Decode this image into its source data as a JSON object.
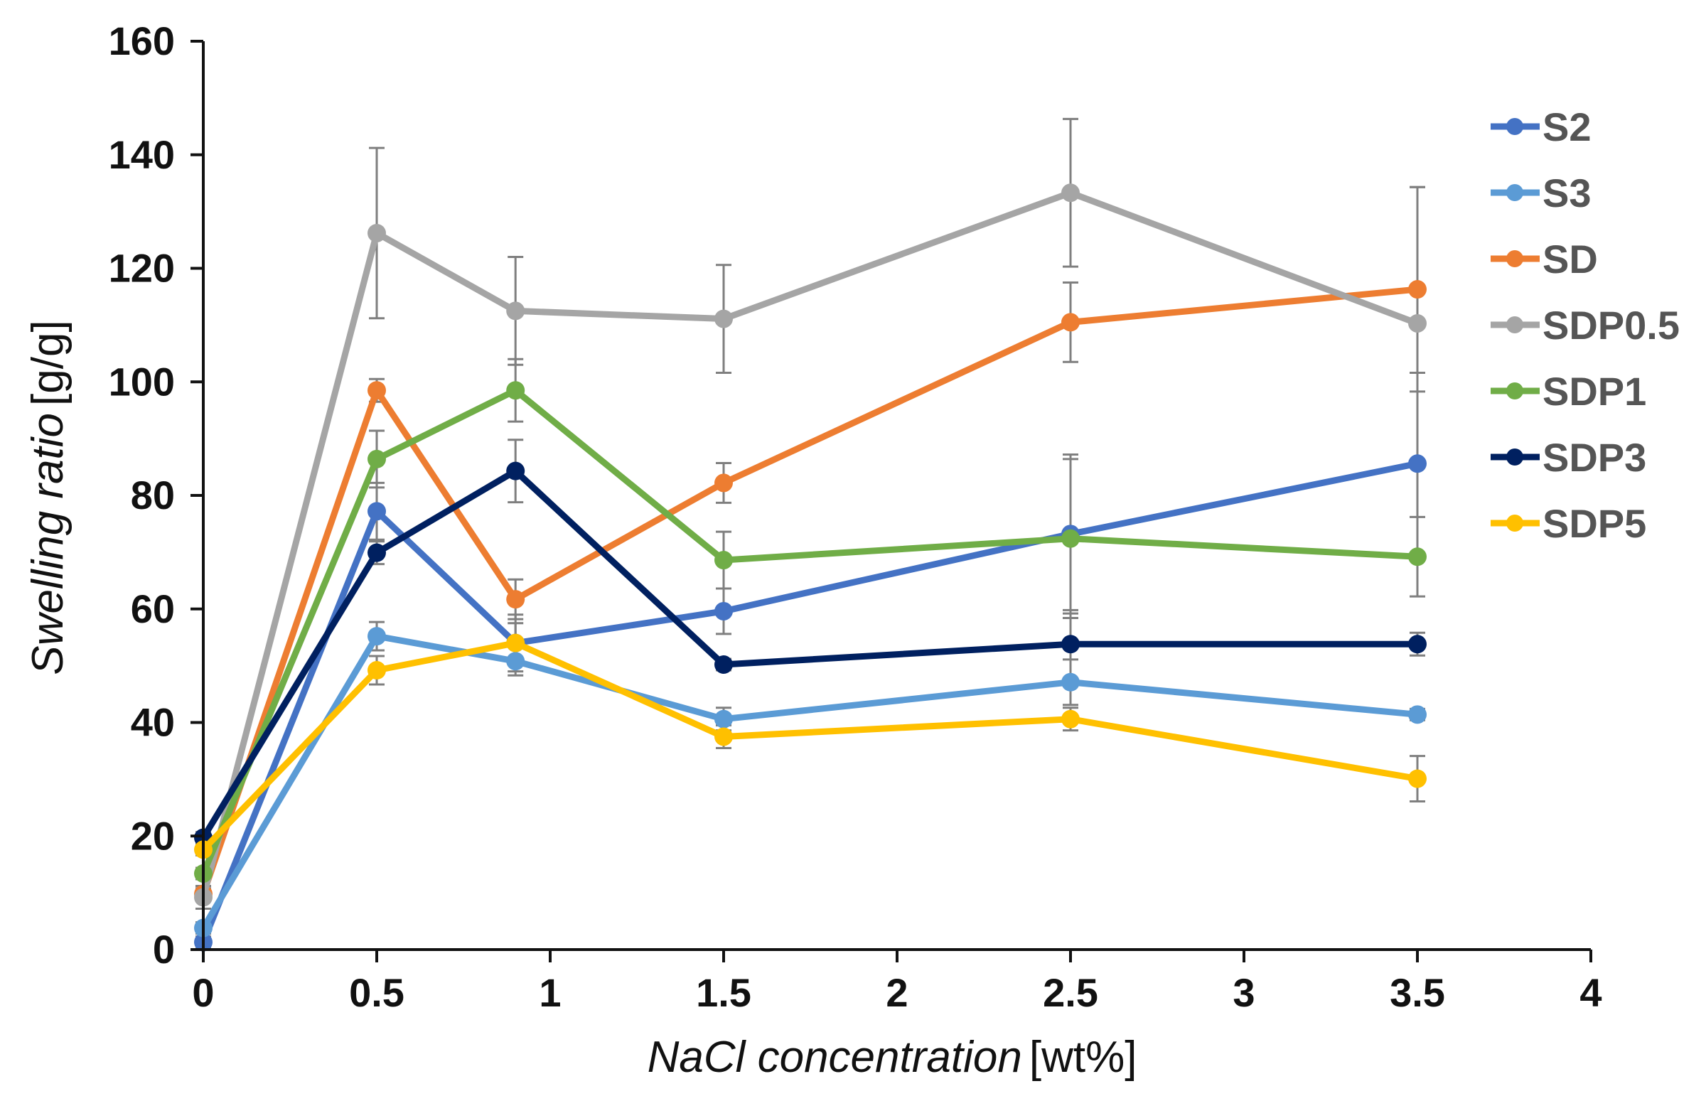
{
  "chart_data": {
    "type": "line",
    "title": "",
    "xlabel_italic": "NaCl concentration",
    "xlabel_unit": "[wt%]",
    "ylabel_italic": "Swelling ratio",
    "ylabel_unit": "[g/g]",
    "xlim": [
      0,
      4
    ],
    "ylim": [
      0,
      160
    ],
    "xticks": [
      "0",
      "0.5",
      "1",
      "1.5",
      "2",
      "2.5",
      "3",
      "3.5",
      "4"
    ],
    "yticks": [
      "0",
      "20",
      "40",
      "60",
      "80",
      "100",
      "120",
      "140",
      "160"
    ],
    "grid": false,
    "legend_position": "right",
    "x": [
      0,
      0.5,
      0.9,
      1.5,
      2.5,
      3.5
    ],
    "series": [
      {
        "name": "S2",
        "color": "#4472C4",
        "values": [
          1.3,
          77.2,
          54,
          59.6,
          73.2,
          85.6
        ],
        "errors": [
          1,
          5,
          5,
          4,
          14,
          16
        ]
      },
      {
        "name": "S3",
        "color": "#5B9BD5",
        "values": [
          3.8,
          55.2,
          50.8,
          40.6,
          47.1,
          41.4
        ],
        "errors": [
          1,
          2.5,
          2.5,
          2,
          4,
          1
        ]
      },
      {
        "name": "SD",
        "color": "#ED7D31",
        "values": [
          9.8,
          98.5,
          61.7,
          82.2,
          110.5,
          116.3
        ],
        "errors": [
          1,
          2,
          3.5,
          3.5,
          7,
          18
        ]
      },
      {
        "name": "SDP0.5",
        "color": "#A5A5A5",
        "values": [
          9.2,
          126.2,
          112.5,
          111.1,
          133.3,
          110.3
        ],
        "errors": [
          2,
          15,
          9.5,
          9.5,
          13,
          24
        ]
      },
      {
        "name": "SDP1",
        "color": "#70AD47",
        "values": [
          13.4,
          86.4,
          98.5,
          68.6,
          72.4,
          69.2
        ],
        "errors": [
          1,
          5,
          5.5,
          5,
          14,
          7
        ]
      },
      {
        "name": "SDP3",
        "color": "#002060",
        "values": [
          19.7,
          69.9,
          84.3,
          50.2,
          53.8,
          53.8
        ],
        "errors": [
          1,
          2,
          5.5,
          1,
          6,
          2
        ]
      },
      {
        "name": "SDP5",
        "color": "#FFC000",
        "values": [
          17.6,
          49.2,
          54,
          37.5,
          40.6,
          30.1
        ],
        "errors": [
          1,
          2.5,
          3.5,
          2,
          2,
          4
        ]
      }
    ]
  }
}
